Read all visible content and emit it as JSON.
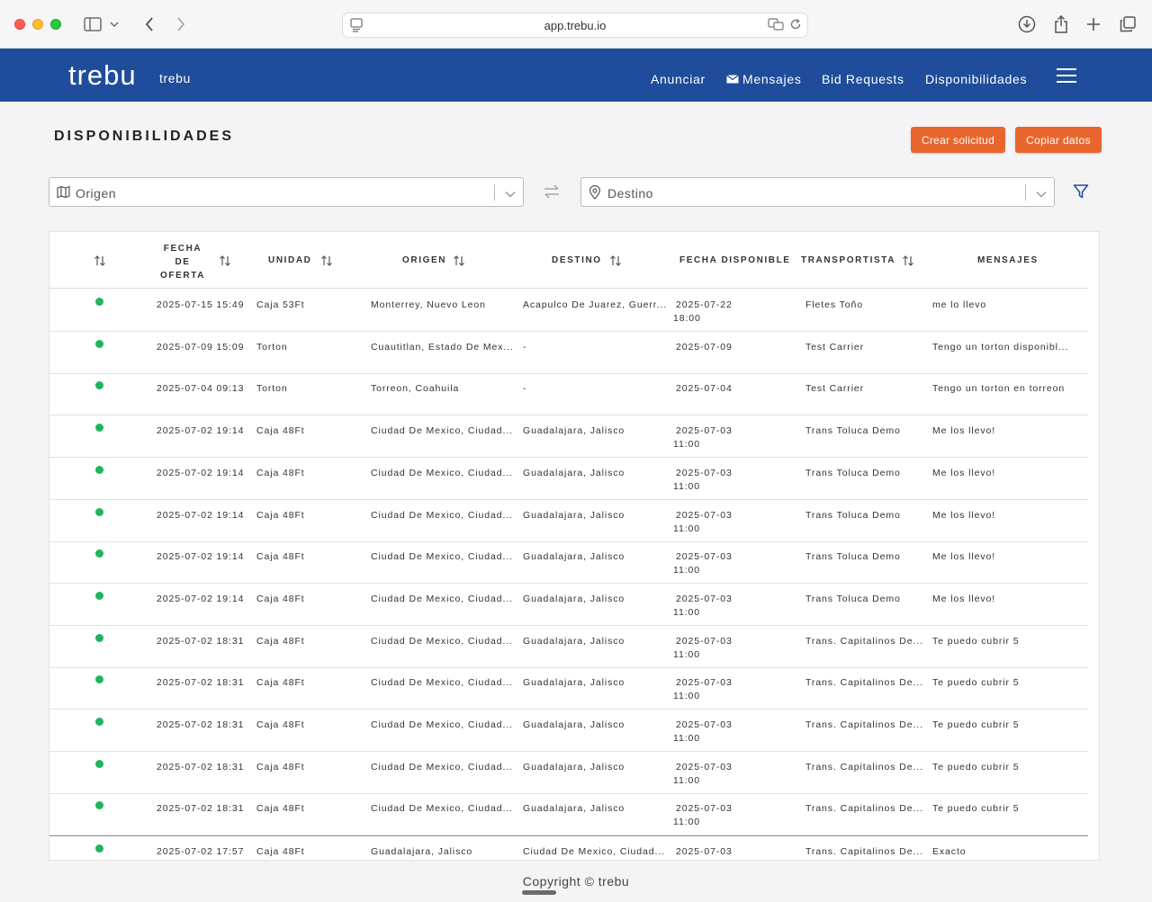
{
  "browser": {
    "url": "app.trebu.io"
  },
  "header": {
    "logo": "trebu",
    "brand": "trebu",
    "nav": [
      "Anunciar",
      "Mensajes",
      "Bid Requests",
      "Disponibilidades"
    ]
  },
  "page": {
    "title": "DISPONIBILIDADES",
    "buttons": {
      "create": "Crear solicitud",
      "copy": "Copiar datos"
    }
  },
  "filters": {
    "origin_placeholder": "Origen",
    "destination_placeholder": "Destino"
  },
  "table": {
    "columns": {
      "fecha_1": "FECHA",
      "fecha_2": "DE",
      "fecha_3": "OFERTA",
      "unidad": "UNIDAD",
      "origen": "ORIGEN",
      "destino": "DESTINO",
      "fecha_disponible": "FECHA DISPONIBLE",
      "transportista": "TRANSPORTISTA",
      "mensajes": "MENSAJES"
    },
    "rows": [
      {
        "status": "active",
        "fecha": "2025-07-15 15:49",
        "unidad": "Caja 53Ft",
        "origen": "Monterrey, Nuevo Leon",
        "destino": "Acapulco De Juarez, Guerr...",
        "disp1": "2025-07-22",
        "disp2": "18:00",
        "transportista": "Fletes Toño",
        "mensaje": "me lo llevo"
      },
      {
        "status": "active",
        "fecha": "2025-07-09 15:09",
        "unidad": "Torton",
        "origen": "Cuautitlan, Estado De Mex...",
        "destino": "-",
        "disp1": "2025-07-09",
        "disp2": "",
        "transportista": "Test Carrier",
        "mensaje": "Tengo un torton disponibl..."
      },
      {
        "status": "active",
        "fecha": "2025-07-04 09:13",
        "unidad": "Torton",
        "origen": "Torreon, Coahuila",
        "destino": "-",
        "disp1": "2025-07-04",
        "disp2": "",
        "transportista": "Test Carrier",
        "mensaje": "Tengo un torton en torreon"
      },
      {
        "status": "active",
        "fecha": "2025-07-02 19:14",
        "unidad": "Caja 48Ft",
        "origen": "Ciudad De Mexico, Ciudad...",
        "destino": "Guadalajara, Jalisco",
        "disp1": "2025-07-03",
        "disp2": "11:00",
        "transportista": "Trans Toluca Demo",
        "mensaje": "Me los llevo!"
      },
      {
        "status": "active",
        "fecha": "2025-07-02 19:14",
        "unidad": "Caja 48Ft",
        "origen": "Ciudad De Mexico, Ciudad...",
        "destino": "Guadalajara, Jalisco",
        "disp1": "2025-07-03",
        "disp2": "11:00",
        "transportista": "Trans Toluca Demo",
        "mensaje": "Me los llevo!"
      },
      {
        "status": "active",
        "fecha": "2025-07-02 19:14",
        "unidad": "Caja 48Ft",
        "origen": "Ciudad De Mexico, Ciudad...",
        "destino": "Guadalajara, Jalisco",
        "disp1": "2025-07-03",
        "disp2": "11:00",
        "transportista": "Trans Toluca Demo",
        "mensaje": "Me los llevo!"
      },
      {
        "status": "active",
        "fecha": "2025-07-02 19:14",
        "unidad": "Caja 48Ft",
        "origen": "Ciudad De Mexico, Ciudad...",
        "destino": "Guadalajara, Jalisco",
        "disp1": "2025-07-03",
        "disp2": "11:00",
        "transportista": "Trans Toluca Demo",
        "mensaje": "Me los llevo!"
      },
      {
        "status": "active",
        "fecha": "2025-07-02 19:14",
        "unidad": "Caja 48Ft",
        "origen": "Ciudad De Mexico, Ciudad...",
        "destino": "Guadalajara, Jalisco",
        "disp1": "2025-07-03",
        "disp2": "11:00",
        "transportista": "Trans Toluca Demo",
        "mensaje": "Me los llevo!"
      },
      {
        "status": "active",
        "fecha": "2025-07-02 18:31",
        "unidad": "Caja 48Ft",
        "origen": "Ciudad De Mexico, Ciudad...",
        "destino": "Guadalajara, Jalisco",
        "disp1": "2025-07-03",
        "disp2": "11:00",
        "transportista": "Trans. Capitalinos De...",
        "mensaje": "Te puedo cubrir 5"
      },
      {
        "status": "active",
        "fecha": "2025-07-02 18:31",
        "unidad": "Caja 48Ft",
        "origen": "Ciudad De Mexico, Ciudad...",
        "destino": "Guadalajara, Jalisco",
        "disp1": "2025-07-03",
        "disp2": "11:00",
        "transportista": "Trans. Capitalinos De...",
        "mensaje": "Te puedo cubrir 5"
      },
      {
        "status": "active",
        "fecha": "2025-07-02 18:31",
        "unidad": "Caja 48Ft",
        "origen": "Ciudad De Mexico, Ciudad...",
        "destino": "Guadalajara, Jalisco",
        "disp1": "2025-07-03",
        "disp2": "11:00",
        "transportista": "Trans. Capitalinos De...",
        "mensaje": "Te puedo cubrir 5"
      },
      {
        "status": "active",
        "fecha": "2025-07-02 18:31",
        "unidad": "Caja 48Ft",
        "origen": "Ciudad De Mexico, Ciudad...",
        "destino": "Guadalajara, Jalisco",
        "disp1": "2025-07-03",
        "disp2": "11:00",
        "transportista": "Trans. Capitalinos De...",
        "mensaje": "Te puedo cubrir 5"
      },
      {
        "status": "active",
        "fecha": "2025-07-02 18:31",
        "unidad": "Caja 48Ft",
        "origen": "Ciudad De Mexico, Ciudad...",
        "destino": "Guadalajara, Jalisco",
        "disp1": "2025-07-03",
        "disp2": "11:00",
        "transportista": "Trans. Capitalinos De...",
        "mensaje": "Te puedo cubrir 5"
      },
      {
        "status": "active",
        "fecha": "2025-07-02 17:57",
        "unidad": "Caja 48Ft",
        "origen": "Guadalajara, Jalisco",
        "destino": "Ciudad De Mexico, Ciudad...",
        "disp1": "2025-07-03",
        "disp2": "",
        "transportista": "Trans. Capitalinos De...",
        "mensaje": "Exacto"
      }
    ]
  },
  "footer": {
    "copyright": "Copyright © trebu"
  },
  "colors": {
    "brand": "#1f4d9b",
    "accent": "#e8662d",
    "status_active": "#22b35f"
  }
}
